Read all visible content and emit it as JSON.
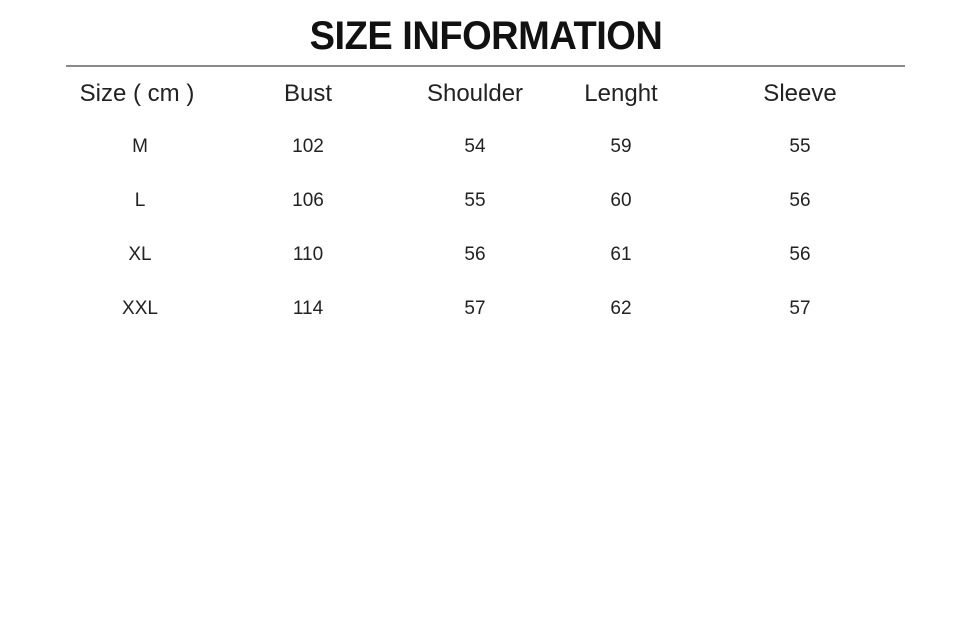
{
  "title": "SIZE INFORMATION",
  "table": {
    "headers": [
      "Size ( cm )",
      "Bust",
      "Shoulder",
      "Lenght",
      "Sleeve"
    ],
    "rows": [
      [
        "M",
        "102",
        "54",
        "59",
        "55"
      ],
      [
        "L",
        "106",
        "55",
        "60",
        "56"
      ],
      [
        "XL",
        "110",
        "56",
        "61",
        "56"
      ],
      [
        "XXL",
        "114",
        "57",
        "62",
        "57"
      ]
    ]
  }
}
